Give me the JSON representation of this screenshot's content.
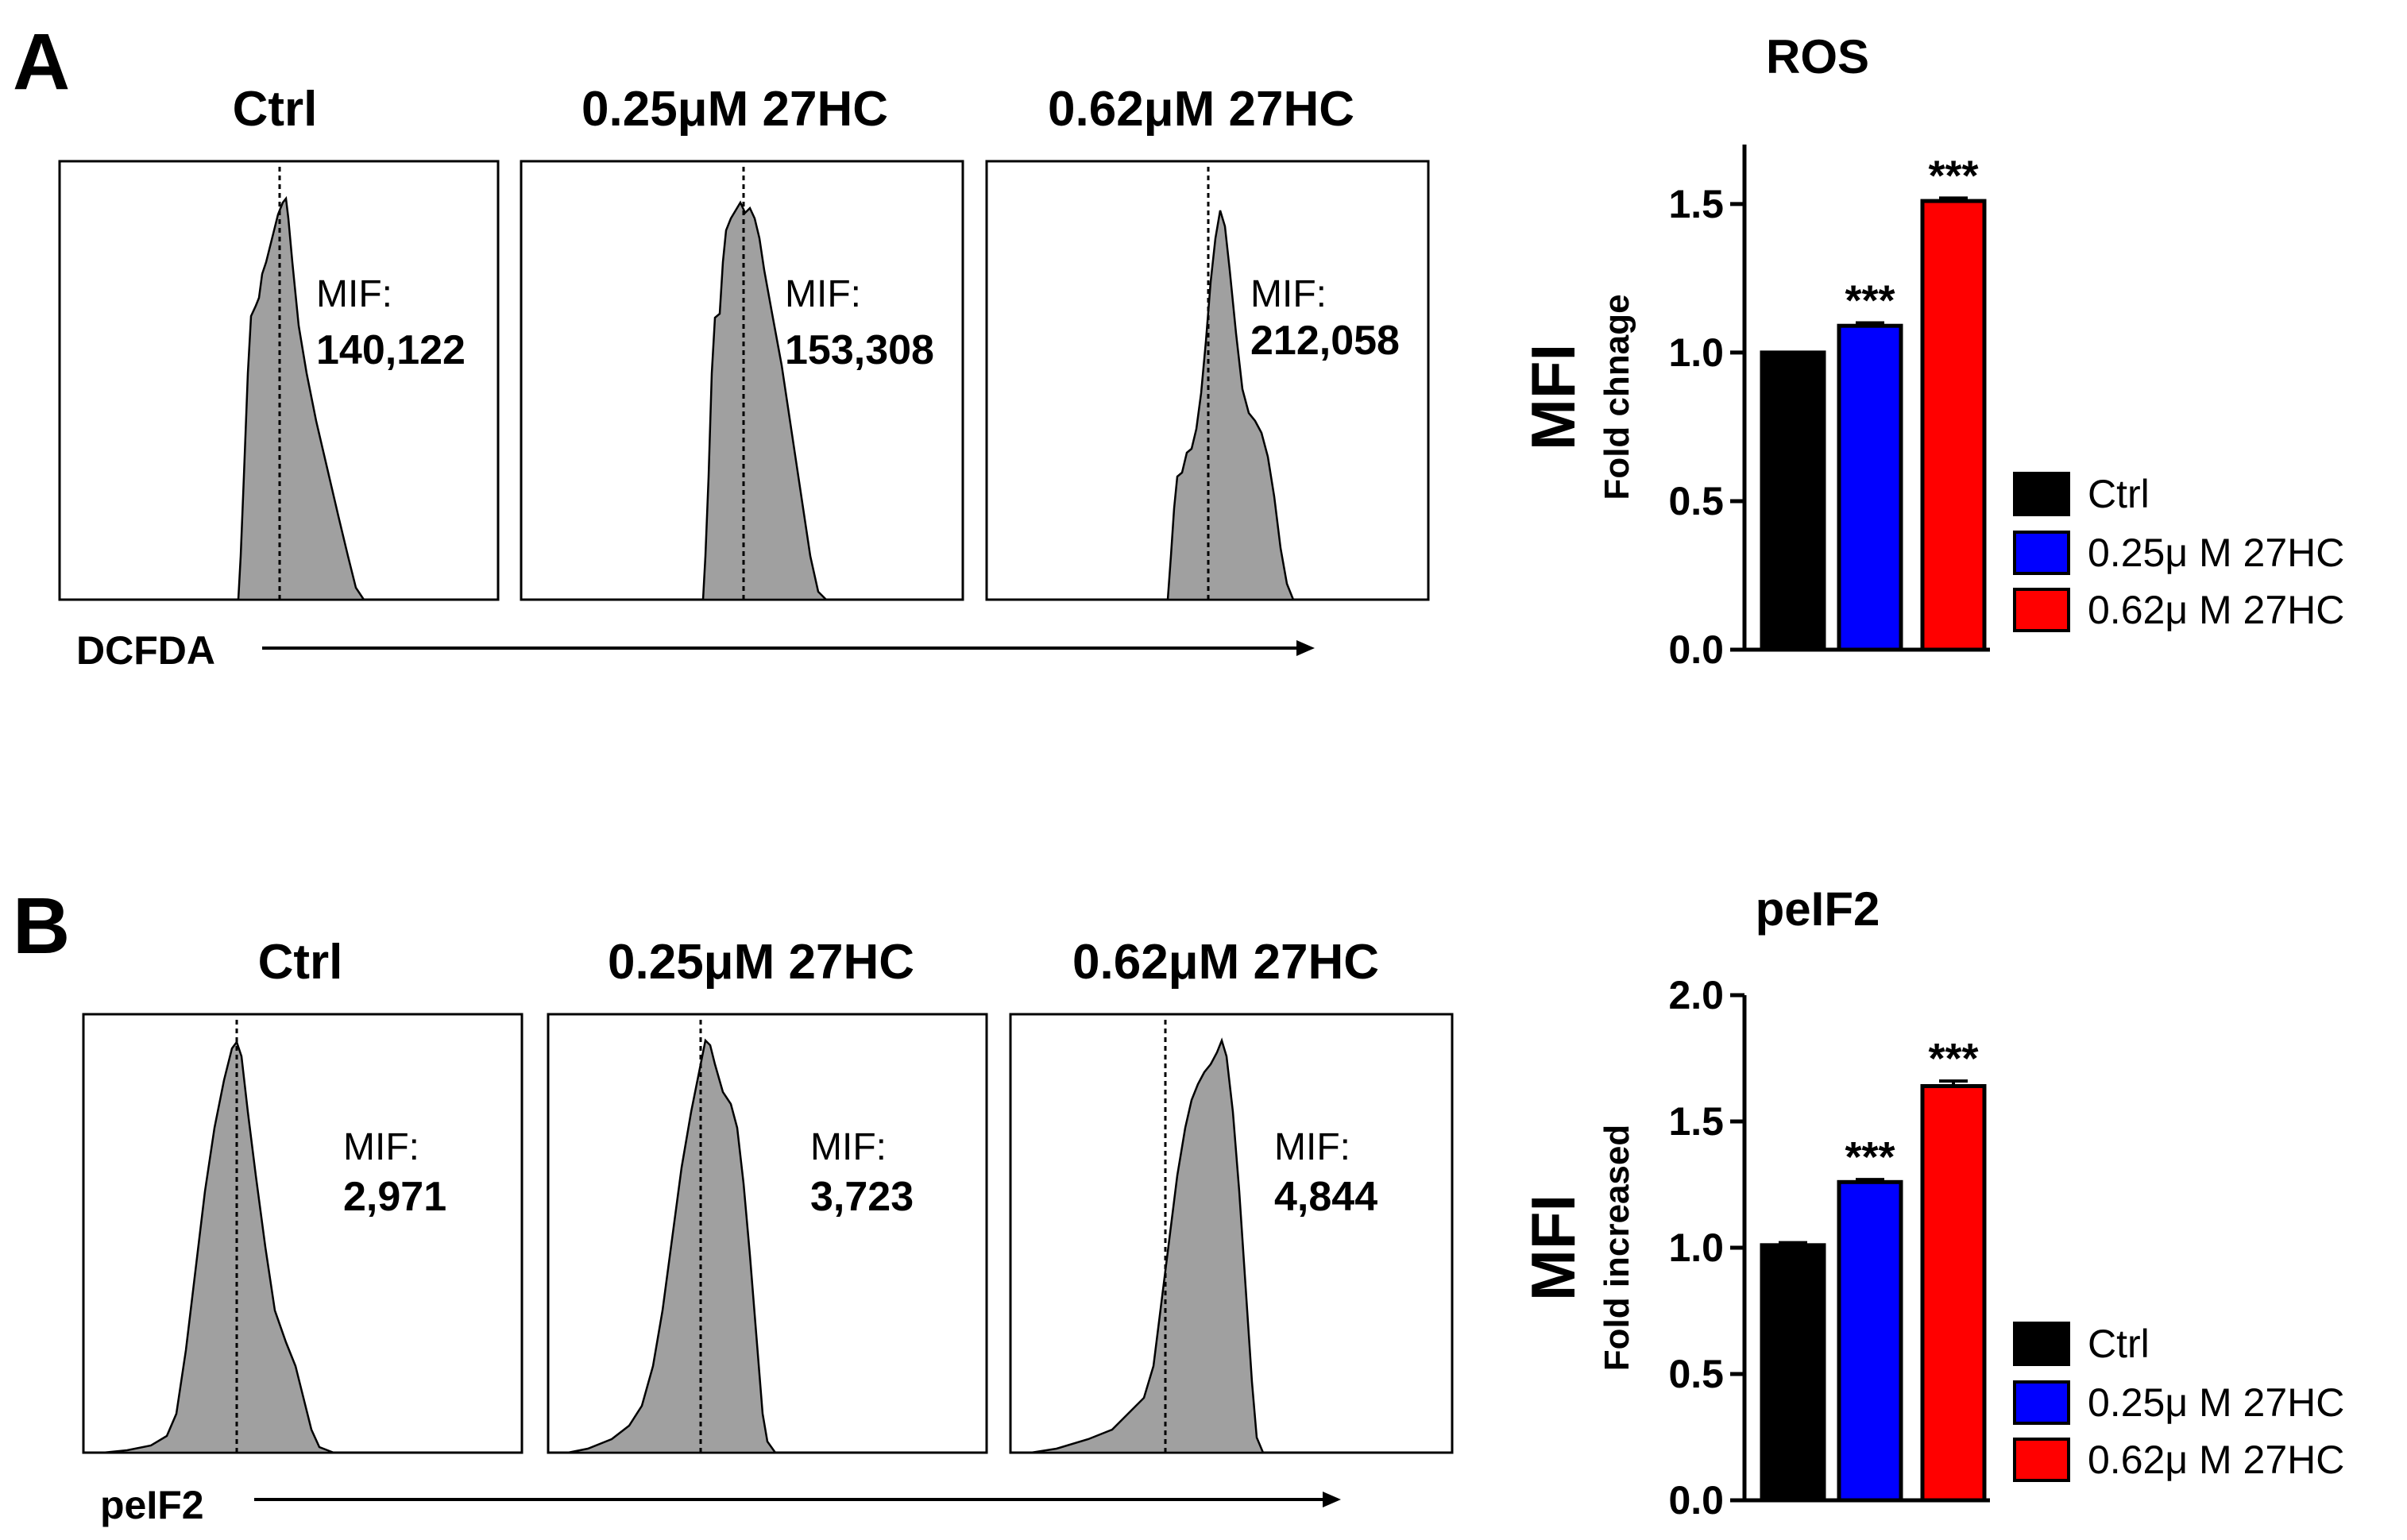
{
  "panel_labels": [
    "A",
    "B"
  ],
  "rows": [
    {
      "axis_label": "DCFDA",
      "histograms": [
        {
          "title": "Ctrl",
          "mif_label": "MIF:",
          "mif_value": "140,122",
          "mif_number": 140122
        },
        {
          "title": "0.25μM 27HC",
          "mif_label": "MIF:",
          "mif_value": "153,308",
          "mif_number": 153308
        },
        {
          "title": "0.62μM 27HC",
          "mif_label": "MIF:",
          "mif_value": "212,058",
          "mif_number": 212058
        }
      ]
    },
    {
      "axis_label": "peIF2",
      "histograms": [
        {
          "title": "Ctrl",
          "mif_label": "MIF:",
          "mif_value": "2,971",
          "mif_number": 2971
        },
        {
          "title": "0.25μM 27HC",
          "mif_label": "MIF:",
          "mif_value": "3,723",
          "mif_number": 3723
        },
        {
          "title": "0.62μM 27HC",
          "mif_label": "MIF:",
          "mif_value": "4,844",
          "mif_number": 4844
        }
      ]
    }
  ],
  "chart_data": [
    {
      "type": "bar",
      "title": "ROS",
      "ylabel": "MFI",
      "ylabel_sub": "Fold chnage",
      "categories": [
        "Ctrl",
        "0.25μ M 27HC",
        "0.62μ M 27HC"
      ],
      "values": [
        1.0,
        1.09,
        1.51
      ],
      "errors": [
        0.0,
        0.01,
        0.01
      ],
      "colors": [
        "#000000",
        "#0000ff",
        "#ff0000"
      ],
      "significance": [
        "",
        "***",
        "***"
      ],
      "ylim": [
        0,
        1.7
      ],
      "yticks": [
        "0.0",
        "0.5",
        "1.0",
        "1.5"
      ],
      "legend": [
        "Ctrl",
        "0.25μ M 27HC",
        "0.62μ M 27HC"
      ],
      "legend_position": "bottom-right",
      "grid": false
    },
    {
      "type": "bar",
      "title": "peIF2",
      "ylabel": "MFI",
      "ylabel_sub": "Fold increased",
      "categories": [
        "Ctrl",
        "0.25μ M 27HC",
        "0.62μ M 27HC"
      ],
      "values": [
        1.01,
        1.26,
        1.64
      ],
      "errors": [
        0.01,
        0.01,
        0.02
      ],
      "colors": [
        "#000000",
        "#0000ff",
        "#ff0000"
      ],
      "significance": [
        "",
        "***",
        "***"
      ],
      "ylim": [
        0,
        2.0
      ],
      "yticks": [
        "0.0",
        "0.5",
        "1.0",
        "1.5",
        "2.0"
      ],
      "legend": [
        "Ctrl",
        "0.25μ M 27HC",
        "0.62μ M 27HC"
      ],
      "legend_position": "bottom-right",
      "grid": false
    }
  ]
}
